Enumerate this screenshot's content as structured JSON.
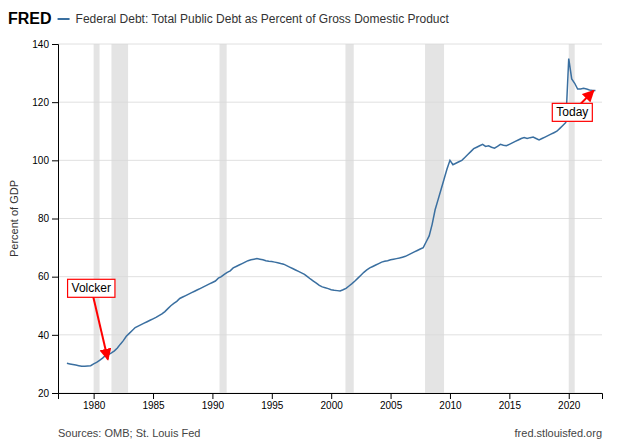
{
  "chart_data": {
    "type": "line",
    "title": "Federal Debt: Total Public Debt as Percent of Gross Domestic Product",
    "logo_text": "FRED",
    "ylabel": "Percent of GDP",
    "source": "Sources: OMB; St. Louis Fed",
    "source_url": "fred.stlouisfed.org",
    "color": "#3a6fa0",
    "grid": true,
    "xlim": [
      1977.0,
      2022.8
    ],
    "xticks": [
      1980,
      1985,
      1990,
      1995,
      2000,
      2005,
      2010,
      2015,
      2020
    ],
    "ylim": [
      20,
      140
    ],
    "yticks": [
      20,
      40,
      60,
      80,
      100,
      120,
      140
    ],
    "recession_bands": [
      [
        1980.0,
        1980.5
      ],
      [
        1981.5,
        1982.9
      ],
      [
        1990.6,
        1991.2
      ],
      [
        2001.2,
        2001.9
      ],
      [
        2007.9,
        2009.5
      ],
      [
        2020.0,
        2020.5
      ]
    ],
    "x": [
      1977.75,
      1978.0,
      1978.25,
      1978.5,
      1978.75,
      1979.0,
      1979.25,
      1979.5,
      1979.75,
      1980.0,
      1980.25,
      1980.5,
      1980.75,
      1981.0,
      1981.25,
      1981.5,
      1981.75,
      1982.0,
      1982.25,
      1982.5,
      1982.75,
      1983.0,
      1983.25,
      1983.5,
      1983.75,
      1984.0,
      1984.25,
      1984.5,
      1984.75,
      1985.0,
      1985.25,
      1985.5,
      1985.75,
      1986.0,
      1986.25,
      1986.5,
      1986.75,
      1987.0,
      1987.25,
      1987.5,
      1987.75,
      1988.0,
      1988.25,
      1988.5,
      1988.75,
      1989.0,
      1989.25,
      1989.5,
      1989.75,
      1990.0,
      1990.25,
      1990.5,
      1990.75,
      1991.0,
      1991.25,
      1991.5,
      1991.75,
      1992.0,
      1992.25,
      1992.5,
      1992.75,
      1993.0,
      1993.25,
      1993.5,
      1993.75,
      1994.0,
      1994.25,
      1994.5,
      1994.75,
      1995.0,
      1995.25,
      1995.5,
      1995.75,
      1996.0,
      1996.25,
      1996.5,
      1996.75,
      1997.0,
      1997.25,
      1997.5,
      1997.75,
      1998.0,
      1998.25,
      1998.5,
      1998.75,
      1999.0,
      1999.25,
      1999.5,
      1999.75,
      2000.0,
      2000.25,
      2000.5,
      2000.75,
      2001.0,
      2001.25,
      2001.5,
      2001.75,
      2002.0,
      2002.25,
      2002.5,
      2002.75,
      2003.0,
      2003.25,
      2003.5,
      2003.75,
      2004.0,
      2004.25,
      2004.5,
      2004.75,
      2005.0,
      2005.25,
      2005.5,
      2005.75,
      2006.0,
      2006.25,
      2006.5,
      2006.75,
      2007.0,
      2007.25,
      2007.5,
      2007.75,
      2008.0,
      2008.25,
      2008.5,
      2008.75,
      2009.0,
      2009.25,
      2009.5,
      2009.75,
      2010.0,
      2010.25,
      2010.5,
      2010.75,
      2011.0,
      2011.25,
      2011.5,
      2011.75,
      2012.0,
      2012.25,
      2012.5,
      2012.75,
      2013.0,
      2013.25,
      2013.5,
      2013.75,
      2014.0,
      2014.25,
      2014.5,
      2014.75,
      2015.0,
      2015.25,
      2015.5,
      2015.75,
      2016.0,
      2016.25,
      2016.5,
      2016.75,
      2017.0,
      2017.25,
      2017.5,
      2017.75,
      2018.0,
      2018.25,
      2018.5,
      2018.75,
      2019.0,
      2019.25,
      2019.5,
      2019.75,
      2020.0,
      2020.25,
      2020.5,
      2020.75,
      2021.0,
      2021.25,
      2021.5,
      2021.75,
      2022.0,
      2022.25
    ],
    "values": [
      30.2,
      30.0,
      29.8,
      29.6,
      29.4,
      29.2,
      29.2,
      29.3,
      29.4,
      30.0,
      30.5,
      31.2,
      32.0,
      32.9,
      33.2,
      33.8,
      34.5,
      35.5,
      36.8,
      38.0,
      39.5,
      40.5,
      41.5,
      42.5,
      43.0,
      43.5,
      44.0,
      44.5,
      45.0,
      45.5,
      46.0,
      46.6,
      47.2,
      48.0,
      49.0,
      50.0,
      50.8,
      51.5,
      52.5,
      53.0,
      53.5,
      54.0,
      54.5,
      55.0,
      55.5,
      56.0,
      56.5,
      57.0,
      57.5,
      58.0,
      58.5,
      59.5,
      60.0,
      60.8,
      61.5,
      62.0,
      63.0,
      63.5,
      64.0,
      64.5,
      65.0,
      65.5,
      65.8,
      66.0,
      66.2,
      66.0,
      65.8,
      65.5,
      65.3,
      65.2,
      65.0,
      64.8,
      64.5,
      64.3,
      63.8,
      63.3,
      62.8,
      62.3,
      61.8,
      61.3,
      60.8,
      60.0,
      59.2,
      58.5,
      57.8,
      57.0,
      56.5,
      56.2,
      55.9,
      55.5,
      55.3,
      55.2,
      55.1,
      55.5,
      56.0,
      56.8,
      57.6,
      58.5,
      59.5,
      60.5,
      61.5,
      62.3,
      63.0,
      63.5,
      64.0,
      64.5,
      65.0,
      65.3,
      65.5,
      65.8,
      66.0,
      66.2,
      66.4,
      66.7,
      67.0,
      67.5,
      68.0,
      68.5,
      69.0,
      69.5,
      70.0,
      72.0,
      74.0,
      78.0,
      83.0,
      86.5,
      90.0,
      93.5,
      97.0,
      100.0,
      98.5,
      99.0,
      99.5,
      100.0,
      101.0,
      102.0,
      103.0,
      104.0,
      104.5,
      105.0,
      105.5,
      104.8,
      105.0,
      104.5,
      104.2,
      104.8,
      105.5,
      105.2,
      105.0,
      105.5,
      106.0,
      106.5,
      107.0,
      107.5,
      107.8,
      107.5,
      107.8,
      108.0,
      107.5,
      107.0,
      107.5,
      108.0,
      108.5,
      109.0,
      109.5,
      110.0,
      111.0,
      112.0,
      113.0,
      135.0,
      128.0,
      126.5,
      124.5,
      124.5,
      124.8,
      124.5,
      124.2,
      124.0,
      124.0
    ],
    "annotations": [
      {
        "text": "Volcker",
        "x": 1981.2,
        "y": 31.5,
        "text_x": 1979.8,
        "text_y": 56.0,
        "color": "red"
      },
      {
        "text": "Today",
        "x": 2022.1,
        "y": 124.0,
        "text_x": 2020.3,
        "text_y": 116.5,
        "color": "red"
      }
    ]
  }
}
